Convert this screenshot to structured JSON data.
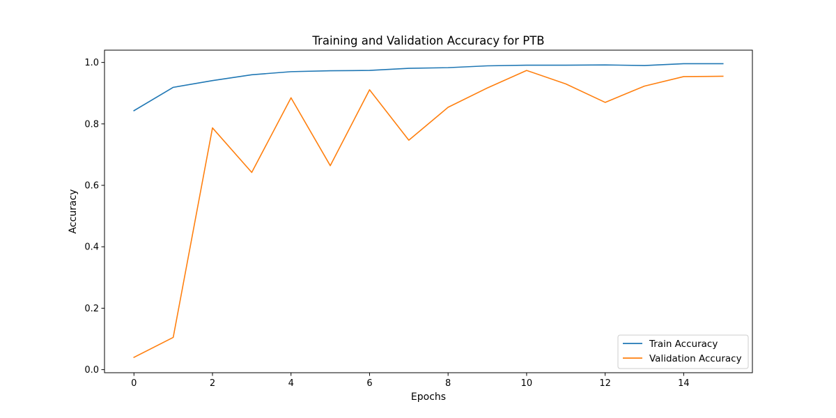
{
  "chart_data": {
    "type": "line",
    "title": "Training and Validation Accuracy for PTB",
    "xlabel": "Epochs",
    "ylabel": "Accuracy",
    "xlim": [
      -0.75,
      15.75
    ],
    "ylim": [
      -0.01,
      1.04
    ],
    "xticks": [
      0,
      2,
      4,
      6,
      8,
      10,
      12,
      14
    ],
    "yticks": [
      0.0,
      0.2,
      0.4,
      0.6,
      0.8,
      1.0
    ],
    "grid": false,
    "legend_position": "lower-right",
    "x": [
      0,
      1,
      2,
      3,
      4,
      5,
      6,
      7,
      8,
      9,
      10,
      11,
      12,
      13,
      14,
      15
    ],
    "series": [
      {
        "name": "Train Accuracy",
        "color": "#1f77b4",
        "values": [
          0.843,
          0.919,
          0.941,
          0.96,
          0.97,
          0.973,
          0.974,
          0.981,
          0.983,
          0.989,
          0.991,
          0.991,
          0.992,
          0.99,
          0.996,
          0.996
        ]
      },
      {
        "name": "Validation Accuracy",
        "color": "#ff7f0e",
        "values": [
          0.04,
          0.105,
          0.787,
          0.642,
          0.885,
          0.664,
          0.911,
          0.747,
          0.854,
          0.917,
          0.974,
          0.93,
          0.87,
          0.923,
          0.954,
          0.955
        ]
      }
    ]
  }
}
